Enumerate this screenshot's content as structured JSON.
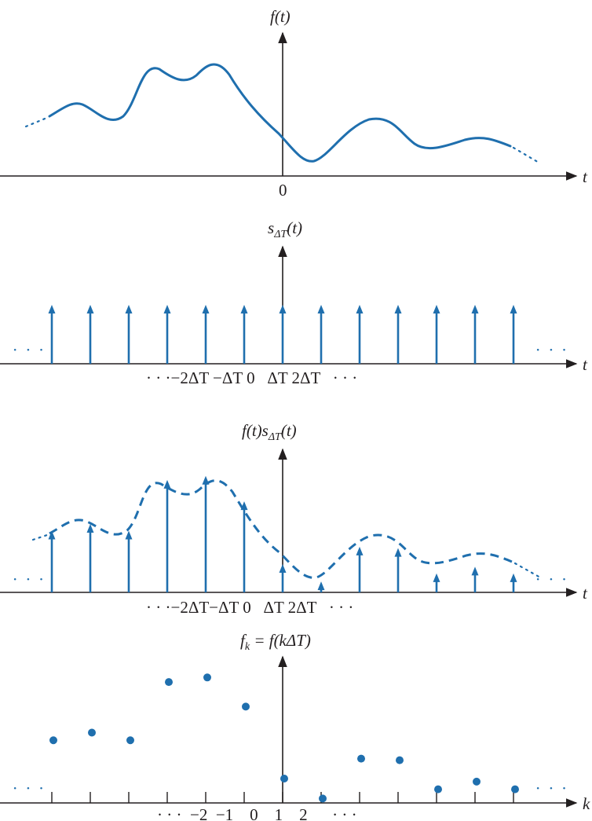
{
  "colors": {
    "curve": "#1f6fae",
    "axis": "#231f20"
  },
  "panel1": {
    "title": "f(t)",
    "origin_label": "0",
    "axis_var": "t"
  },
  "panel2": {
    "title": "s",
    "title_sub": "ΔT",
    "title_tail": "(t)",
    "tick_labels": "· · ·−2ΔT −ΔT 0   ΔT 2ΔT   · · ·",
    "axis_var": "t",
    "ellipsis": "· · ·"
  },
  "panel3": {
    "title_a": "f(t)s",
    "title_sub": "ΔT",
    "title_tail": "(t)",
    "tick_labels": "· · ·−2ΔT−ΔT 0   ΔT 2ΔT   · · ·",
    "axis_var": "t",
    "ellipsis": "· · ·"
  },
  "panel4": {
    "title_a": "f",
    "title_sub": "k",
    "title_tail": " = f(kΔT)",
    "tick_labels": "· · ·  −2  −1    0    1    2      · · ·",
    "axis_var": "k",
    "ellipsis": "· · ·"
  },
  "samples": {
    "k": [
      -6,
      -5,
      -4,
      -3,
      -2,
      -1,
      0,
      1,
      2,
      3,
      4,
      5,
      6
    ],
    "f_values": [
      0.45,
      0.5,
      0.45,
      0.83,
      0.86,
      0.67,
      0.2,
      0.07,
      0.33,
      0.32,
      0.13,
      0.18,
      0.13
    ]
  }
}
